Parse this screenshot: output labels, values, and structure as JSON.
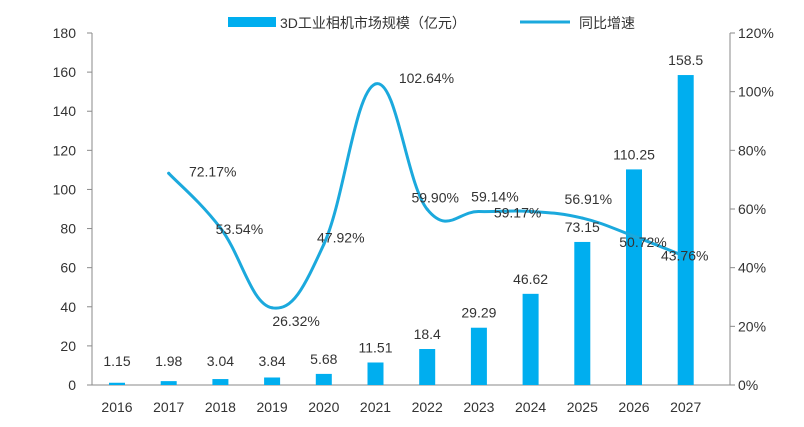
{
  "colors": {
    "bar": "#00AEEF",
    "line": "#1BA9DD",
    "axis": "#8A8A8A",
    "text": "#333333"
  },
  "chart_data": {
    "type": "bar",
    "title": "",
    "legend_position": "top",
    "categories": [
      "2016",
      "2017",
      "2018",
      "2019",
      "2020",
      "2021",
      "2022",
      "2023",
      "2024",
      "2025",
      "2026",
      "2027"
    ],
    "series": [
      {
        "name": "3D工业相机市场规模（亿元）",
        "type": "bar",
        "axis": "left",
        "values": [
          1.15,
          1.98,
          3.04,
          3.84,
          5.68,
          11.51,
          18.4,
          29.29,
          46.62,
          73.15,
          110.25,
          158.5
        ],
        "labels": [
          "1.15",
          "1.98",
          "3.04",
          "3.84",
          "5.68",
          "11.51",
          "18.4",
          "29.29",
          "46.62",
          "73.15",
          "110.25",
          "158.5"
        ]
      },
      {
        "name": "同比增速",
        "type": "line",
        "axis": "right",
        "values": [
          null,
          72.17,
          53.54,
          26.32,
          47.92,
          102.64,
          59.9,
          59.14,
          59.17,
          56.91,
          50.72,
          43.76
        ],
        "labels": [
          "",
          "72.17%",
          "53.54%",
          "26.32%",
          "47.92%",
          "102.64%",
          "59.90%",
          "59.14%",
          "59.17%",
          "56.91%",
          "50.72%",
          "43.76%"
        ]
      }
    ],
    "y_left": {
      "min": 0,
      "max": 180,
      "step": 20,
      "ticks": [
        "0",
        "20",
        "40",
        "60",
        "80",
        "100",
        "120",
        "140",
        "160",
        "180"
      ]
    },
    "y_right": {
      "min": 0,
      "max": 120,
      "step": 20,
      "ticks": [
        "0%",
        "20%",
        "40%",
        "60%",
        "80%",
        "100%",
        "120%"
      ]
    },
    "grid": false
  }
}
